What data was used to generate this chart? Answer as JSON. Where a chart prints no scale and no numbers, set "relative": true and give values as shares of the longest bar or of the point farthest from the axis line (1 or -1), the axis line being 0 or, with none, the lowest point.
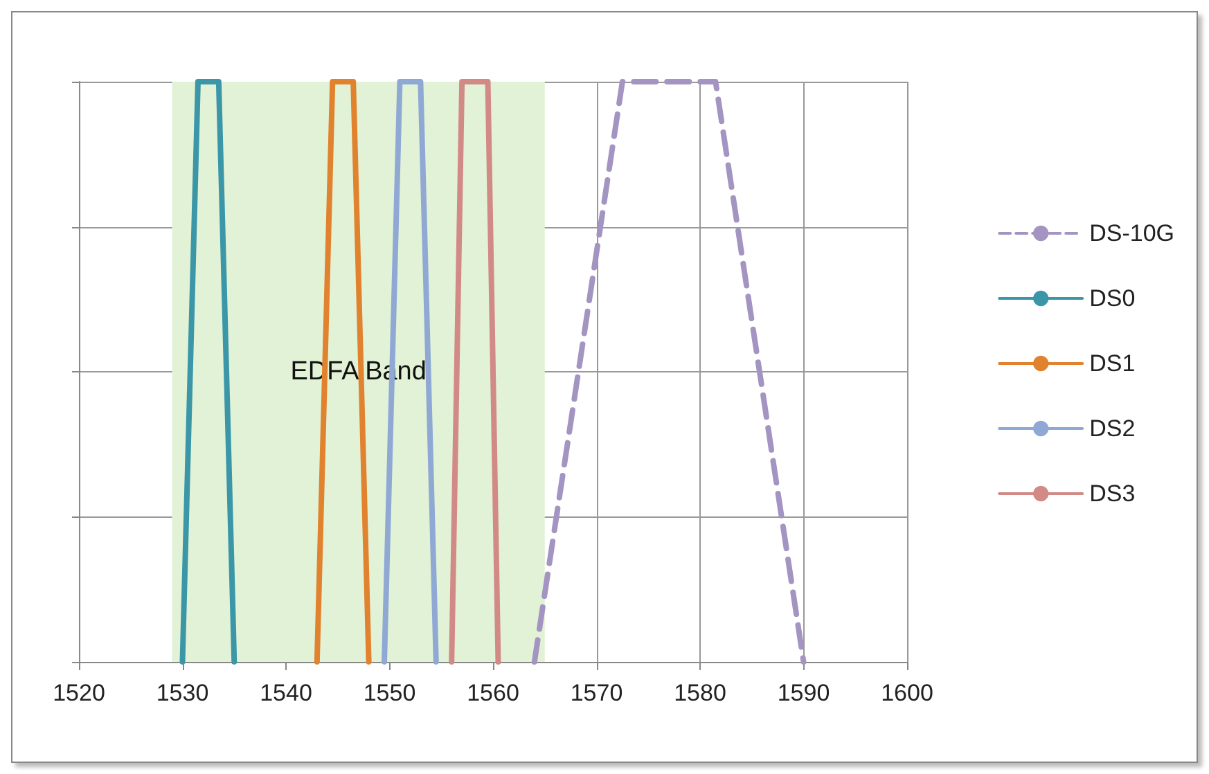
{
  "chart_data": {
    "type": "line",
    "relative": true,
    "xlim": [
      1520,
      1600
    ],
    "xticks": [
      1520,
      1530,
      1540,
      1550,
      1560,
      1570,
      1580,
      1590,
      1600
    ],
    "grid": true,
    "legend": "right",
    "marker": "none",
    "series": [
      {
        "name": "DS-10G",
        "color": "#a394c2",
        "line_style": "dashed",
        "x": [
          1564,
          1572.5,
          1581.5,
          1590
        ],
        "values": [
          0,
          1,
          1,
          0
        ]
      },
      {
        "name": "DS0",
        "color": "#3b97a8",
        "x": [
          1530,
          1531.5,
          1533.5,
          1535
        ],
        "values": [
          0,
          1,
          1,
          0
        ]
      },
      {
        "name": "DS1",
        "color": "#e0822e",
        "x": [
          1543,
          1544.5,
          1546.5,
          1548
        ],
        "values": [
          0,
          1,
          1,
          0
        ]
      },
      {
        "name": "DS2",
        "color": "#8fa9d4",
        "x": [
          1549.5,
          1551,
          1553,
          1554.5
        ],
        "values": [
          0,
          1,
          1,
          0
        ]
      },
      {
        "name": "DS3",
        "color": "#d28a87",
        "x": [
          1556,
          1557,
          1559.5,
          1560.5
        ],
        "values": [
          0,
          1,
          1,
          0
        ]
      }
    ],
    "bands": [
      {
        "axis": "x",
        "from": 1529,
        "to": 1565,
        "label": "EDFA Band",
        "color": "#e2f2d6"
      }
    ]
  }
}
